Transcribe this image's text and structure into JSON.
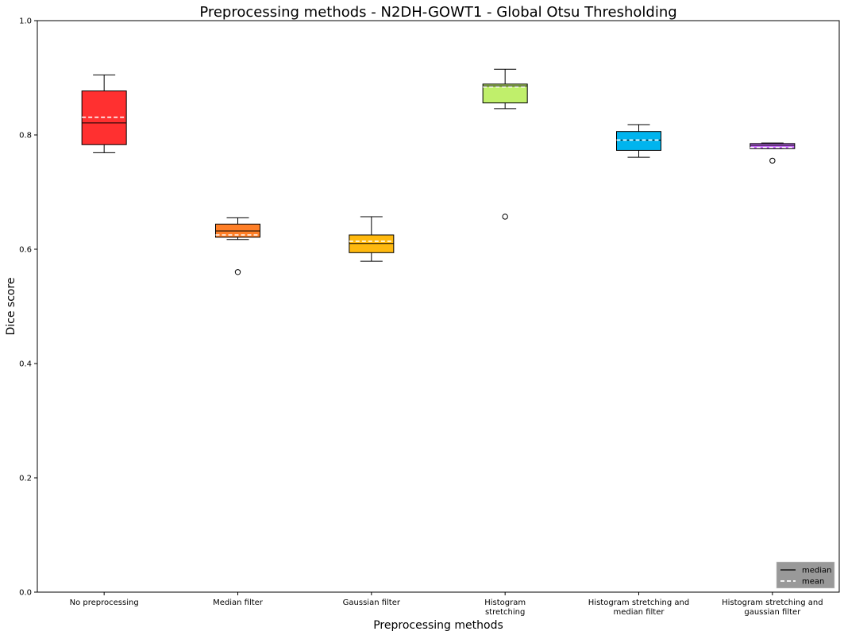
{
  "chart_data": {
    "type": "box",
    "title": "Preprocessing methods - N2DH-GOWT1 - Global Otsu Thresholding",
    "xlabel": "Preprocessing methods",
    "ylabel": "Dice score",
    "ylim": [
      0,
      1
    ],
    "yticks": [
      "0.0",
      "0.2",
      "0.4",
      "0.6",
      "0.8",
      "1.0"
    ],
    "grid": false,
    "legend": {
      "position": "bottom-right",
      "items": [
        {
          "label": "median",
          "style": "solid",
          "color": "#000000"
        },
        {
          "label": "mean",
          "style": "dashed",
          "color": "#ffffff"
        }
      ]
    },
    "categories": [
      {
        "label_lines": [
          "No preprocessing"
        ],
        "color": "#ff3030",
        "whisker_low": 0.769,
        "q1": 0.783,
        "median": 0.821,
        "mean": 0.831,
        "q3": 0.877,
        "whisker_high": 0.905,
        "outliers": []
      },
      {
        "label_lines": [
          "Median filter"
        ],
        "color": "#ff7f27",
        "whisker_low": 0.617,
        "q1": 0.621,
        "median": 0.632,
        "mean": 0.625,
        "q3": 0.644,
        "whisker_high": 0.655,
        "outliers": [
          0.56
        ]
      },
      {
        "label_lines": [
          "Gaussian filter"
        ],
        "color": "#ffb90f",
        "whisker_low": 0.579,
        "q1": 0.594,
        "median": 0.61,
        "mean": 0.614,
        "q3": 0.625,
        "whisker_high": 0.657,
        "outliers": []
      },
      {
        "label_lines": [
          "Histogram",
          "stretching"
        ],
        "color": "#c0ef6b",
        "whisker_low": 0.846,
        "q1": 0.856,
        "median": 0.886,
        "mean": 0.884,
        "q3": 0.889,
        "whisker_high": 0.915,
        "outliers": [
          0.657
        ]
      },
      {
        "label_lines": [
          "Histogram stretching and",
          "median filter"
        ],
        "color": "#00b4ee",
        "whisker_low": 0.761,
        "q1": 0.773,
        "median": 0.791,
        "mean": 0.791,
        "q3": 0.806,
        "whisker_high": 0.818,
        "outliers": []
      },
      {
        "label_lines": [
          "Histogram stretching and",
          "gaussian filter"
        ],
        "color": "#c86bfa",
        "whisker_low": 0.776,
        "q1": 0.776,
        "median": 0.782,
        "mean": 0.778,
        "q3": 0.785,
        "whisker_high": 0.786,
        "outliers": [
          0.755
        ]
      }
    ]
  }
}
